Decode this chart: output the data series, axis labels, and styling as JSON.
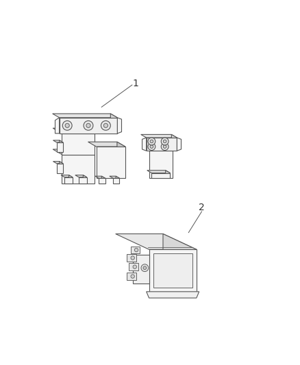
{
  "background_color": "#ffffff",
  "label1": "1",
  "label2": "2",
  "line_color": "#555555",
  "text_color": "#333333",
  "fig_width": 4.38,
  "fig_height": 5.33,
  "dpi": 100,
  "lw": 0.8
}
